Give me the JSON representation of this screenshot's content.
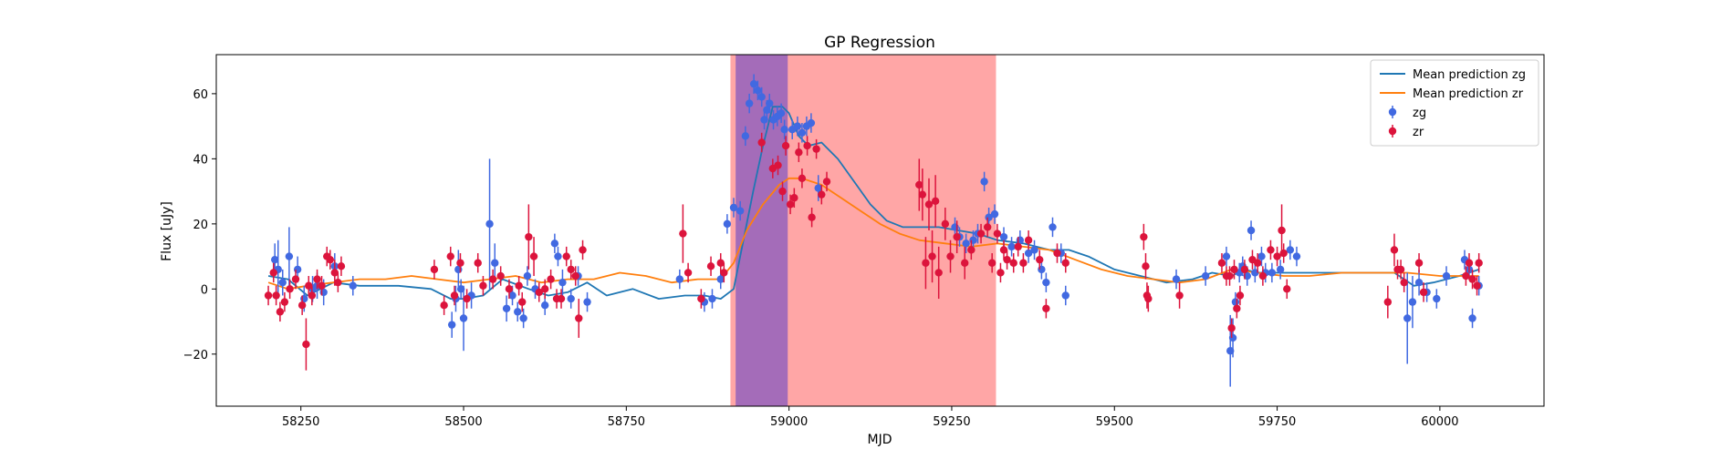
{
  "chart_data": {
    "type": "scatter",
    "title": "GP Regression",
    "xlabel": "MJD",
    "ylabel": "Flux [uJy]",
    "xlim": [
      58120,
      60160
    ],
    "ylim": [
      -36,
      72
    ],
    "xticks": [
      58250,
      58500,
      58750,
      59000,
      59250,
      59500,
      59750,
      60000
    ],
    "yticks": [
      -20,
      0,
      20,
      40,
      60
    ],
    "xtick_labels": [
      "58250",
      "58500",
      "58750",
      "59000",
      "59250",
      "59500",
      "59750",
      "60000"
    ],
    "ytick_labels": [
      "−20",
      "0",
      "20",
      "40",
      "60"
    ],
    "grid": false,
    "legend_position": "top-right",
    "legend": [
      {
        "label": "Mean prediction zg",
        "kind": "line",
        "color": "#1f77b4"
      },
      {
        "label": "Mean prediction zr",
        "kind": "line",
        "color": "#ff7f0e"
      },
      {
        "label": "zg",
        "kind": "errorbar",
        "color": "#4169e1"
      },
      {
        "label": "zr",
        "kind": "errorbar",
        "color": "#dc143c"
      }
    ],
    "shaded_regions": [
      {
        "x": [
          58910,
          59318
        ],
        "color": "#ff0000",
        "alpha": 0.35
      },
      {
        "x": [
          58918,
          58998
        ],
        "color": "#5a3cc8",
        "alpha": 0.55
      }
    ],
    "series": [
      {
        "name": "Mean prediction zg",
        "kind": "line",
        "color": "#1f77b4",
        "x": [
          58200,
          58230,
          58260,
          58300,
          58340,
          58400,
          58450,
          58480,
          58500,
          58530,
          58560,
          58600,
          58630,
          58660,
          58690,
          58720,
          58760,
          58800,
          58840,
          58870,
          58895,
          58915,
          58930,
          58945,
          58960,
          58975,
          58990,
          59000,
          59015,
          59030,
          59050,
          59075,
          59100,
          59125,
          59150,
          59175,
          59200,
          59230,
          59260,
          59290,
          59320,
          59360,
          59400,
          59430,
          59460,
          59500,
          59540,
          59580,
          59620,
          59650,
          59680,
          59700,
          59720,
          59750,
          59800,
          59850,
          59900,
          59930,
          59960,
          59990,
          60030,
          60060
        ],
        "y": [
          4,
          3,
          -2,
          2,
          1,
          1,
          0,
          -3,
          -3,
          -2,
          3,
          0,
          -2,
          -1,
          2,
          -2,
          0,
          -3,
          -2,
          -2,
          -3,
          0,
          15,
          30,
          44,
          56,
          56,
          54,
          47,
          44,
          45,
          40,
          33,
          26,
          21,
          19,
          19,
          19,
          18,
          17,
          15,
          14,
          12,
          12,
          10,
          6,
          4,
          2,
          3,
          5,
          4,
          6,
          5,
          5,
          5,
          5,
          5,
          5,
          1,
          2,
          4,
          6
        ]
      },
      {
        "name": "Mean prediction zr",
        "kind": "line",
        "color": "#ff7f0e",
        "x": [
          58200,
          58230,
          58260,
          58300,
          58340,
          58380,
          58420,
          58460,
          58500,
          58540,
          58580,
          58620,
          58660,
          58700,
          58740,
          58780,
          58820,
          58860,
          58895,
          58915,
          58935,
          58960,
          58985,
          59000,
          59020,
          59050,
          59080,
          59110,
          59140,
          59170,
          59200,
          59240,
          59280,
          59320,
          59360,
          59400,
          59440,
          59480,
          59520,
          59560,
          59600,
          59640,
          59680,
          59720,
          59760,
          59800,
          59850,
          59900,
          59950,
          60000,
          60060
        ],
        "y": [
          2,
          0,
          1,
          2,
          3,
          3,
          4,
          3,
          2,
          3,
          4,
          2,
          3,
          3,
          5,
          4,
          2,
          3,
          3,
          8,
          18,
          26,
          32,
          34,
          34,
          32,
          28,
          24,
          20,
          17,
          15,
          14,
          13,
          14,
          13,
          12,
          9,
          6,
          4,
          3,
          2,
          3,
          6,
          5,
          4,
          4,
          5,
          5,
          5,
          4,
          4
        ]
      },
      {
        "name": "zg",
        "kind": "errorbar",
        "color": "#4169e1",
        "x": [
          58210,
          58215,
          58222,
          58232,
          58245,
          58255,
          58268,
          58275,
          58285,
          58302,
          58330,
          58482,
          58488,
          58492,
          58496,
          58500,
          58512,
          58540,
          58548,
          58566,
          58575,
          58583,
          58592,
          58598,
          58610,
          58625,
          58640,
          58645,
          58652,
          58665,
          58676,
          58690,
          58832,
          58870,
          58882,
          58895,
          58905,
          58915,
          58925,
          58933,
          58939,
          58946,
          58952,
          58958,
          58962,
          58966,
          58970,
          58976,
          58982,
          58988,
          58993,
          59005,
          59013,
          59020,
          59027,
          59034,
          59045,
          59255,
          59262,
          59272,
          59283,
          59290,
          59300,
          59307,
          59316,
          59330,
          59342,
          59355,
          59368,
          59377,
          59388,
          59395,
          59405,
          59418,
          59425,
          59595,
          59640,
          59672,
          59678,
          59682,
          59686,
          59692,
          59697,
          59704,
          59710,
          59716,
          59726,
          59732,
          59742,
          59755,
          59770,
          59780,
          59950,
          59958,
          59968,
          59980,
          59995,
          60010,
          60038,
          60045,
          60050,
          60060
        ],
        "y": [
          9,
          6,
          2,
          10,
          6,
          -3,
          0,
          1,
          -1,
          7,
          1,
          -11,
          -3,
          6,
          0,
          -9,
          -2,
          20,
          8,
          -6,
          -2,
          -7,
          -9,
          4,
          0,
          -5,
          14,
          10,
          2,
          -3,
          4,
          -4,
          3,
          -4,
          -3,
          3,
          20,
          25,
          24,
          47,
          57,
          63,
          61,
          59,
          52,
          55,
          57,
          52,
          53,
          54,
          49,
          49,
          50,
          48,
          50,
          51,
          31,
          19,
          16,
          14,
          15,
          17,
          33,
          22,
          23,
          16,
          13,
          15,
          11,
          12,
          6,
          2,
          19,
          11,
          -2,
          3,
          4,
          10,
          -19,
          -15,
          -4,
          5,
          7,
          4,
          18,
          5,
          10,
          5,
          5,
          6,
          12,
          10,
          -9,
          -4,
          2,
          -1,
          -3,
          4,
          9,
          6,
          -9,
          1
        ],
        "err": [
          5,
          9,
          4,
          9,
          4,
          4,
          4,
          4,
          4,
          4,
          3,
          4,
          4,
          6,
          3,
          10,
          4,
          20,
          6,
          4,
          3,
          3,
          3,
          3,
          3,
          3,
          3,
          3,
          4,
          3,
          3,
          3,
          3,
          3,
          3,
          3,
          3,
          3,
          3,
          3,
          3,
          3,
          3,
          3,
          3,
          3,
          3,
          3,
          3,
          3,
          3,
          3,
          3,
          3,
          3,
          3,
          4,
          3,
          3,
          3,
          3,
          3,
          3,
          3,
          3,
          3,
          3,
          3,
          3,
          3,
          3,
          3,
          3,
          3,
          3,
          3,
          3,
          3,
          11,
          6,
          3,
          3,
          3,
          3,
          3,
          3,
          3,
          3,
          3,
          3,
          3,
          3,
          14,
          8,
          4,
          3,
          3,
          3,
          3,
          3,
          3,
          3
        ]
      },
      {
        "name": "zr",
        "kind": "errorbar",
        "color": "#dc143c",
        "x": [
          58200,
          58208,
          58212,
          58218,
          58225,
          58233,
          58242,
          58252,
          58258,
          58262,
          58267,
          58275,
          58282,
          58290,
          58295,
          58302,
          58307,
          58312,
          58455,
          58470,
          58480,
          58486,
          58495,
          58505,
          58522,
          58530,
          58545,
          58557,
          58570,
          58585,
          58590,
          58600,
          58608,
          58616,
          58625,
          58634,
          58643,
          58650,
          58658,
          58665,
          58672,
          58677,
          58683,
          58837,
          58845,
          58865,
          58880,
          58895,
          58900,
          58958,
          58975,
          58983,
          58990,
          58995,
          59002,
          59008,
          59015,
          59020,
          59028,
          59035,
          59042,
          59050,
          59058,
          59200,
          59205,
          59210,
          59215,
          59220,
          59225,
          59230,
          59240,
          59248,
          59258,
          59270,
          59280,
          59295,
          59305,
          59312,
          59320,
          59325,
          59330,
          59335,
          59345,
          59352,
          59360,
          59368,
          59385,
          59395,
          59412,
          59425,
          59545,
          59548,
          59550,
          59552,
          59600,
          59665,
          59672,
          59677,
          59680,
          59684,
          59688,
          59693,
          59700,
          59712,
          59720,
          59728,
          59740,
          59750,
          59757,
          59760,
          59765,
          59920,
          59930,
          59935,
          59940,
          59945,
          59968,
          59975,
          60040,
          60045,
          60050,
          60057,
          60060
        ],
        "y": [
          -2,
          5,
          -2,
          -7,
          -4,
          0,
          3,
          -5,
          -17,
          1,
          -2,
          3,
          1,
          10,
          9,
          5,
          2,
          7,
          6,
          -5,
          10,
          -2,
          8,
          -3,
          8,
          1,
          3,
          4,
          0,
          1,
          -4,
          16,
          10,
          -1,
          0,
          3,
          -3,
          -3,
          10,
          6,
          4,
          -9,
          12,
          17,
          5,
          -3,
          7,
          8,
          5,
          45,
          37,
          38,
          30,
          44,
          26,
          28,
          42,
          34,
          44,
          22,
          43,
          29,
          33,
          32,
          29,
          8,
          26,
          10,
          27,
          5,
          20,
          10,
          16,
          8,
          12,
          17,
          19,
          8,
          17,
          5,
          12,
          9,
          8,
          13,
          8,
          15,
          9,
          -6,
          11,
          8,
          16,
          7,
          -2,
          -3,
          -2,
          8,
          4,
          4,
          -12,
          6,
          -6,
          -2,
          6,
          9,
          8,
          4,
          12,
          10,
          18,
          11,
          0,
          -4,
          12,
          6,
          6,
          2,
          8,
          -1,
          4,
          8,
          3,
          1,
          8
        ],
        "err": [
          3,
          3,
          3,
          3,
          3,
          3,
          3,
          3,
          8,
          3,
          3,
          3,
          3,
          3,
          3,
          4,
          3,
          3,
          3,
          3,
          3,
          3,
          3,
          3,
          3,
          3,
          3,
          3,
          3,
          3,
          3,
          10,
          6,
          3,
          3,
          3,
          3,
          3,
          3,
          3,
          3,
          6,
          3,
          9,
          3,
          3,
          3,
          3,
          3,
          3,
          3,
          3,
          3,
          3,
          3,
          3,
          3,
          3,
          3,
          3,
          3,
          3,
          3,
          8,
          8,
          8,
          8,
          8,
          8,
          8,
          5,
          5,
          5,
          5,
          3,
          3,
          3,
          3,
          3,
          3,
          3,
          3,
          3,
          3,
          3,
          3,
          3,
          3,
          3,
          3,
          4,
          4,
          4,
          4,
          4,
          3,
          3,
          3,
          3,
          3,
          3,
          3,
          3,
          3,
          3,
          3,
          3,
          3,
          8,
          3,
          3,
          5,
          5,
          3,
          3,
          3,
          3,
          3,
          3,
          3,
          3,
          3,
          3
        ]
      }
    ]
  }
}
